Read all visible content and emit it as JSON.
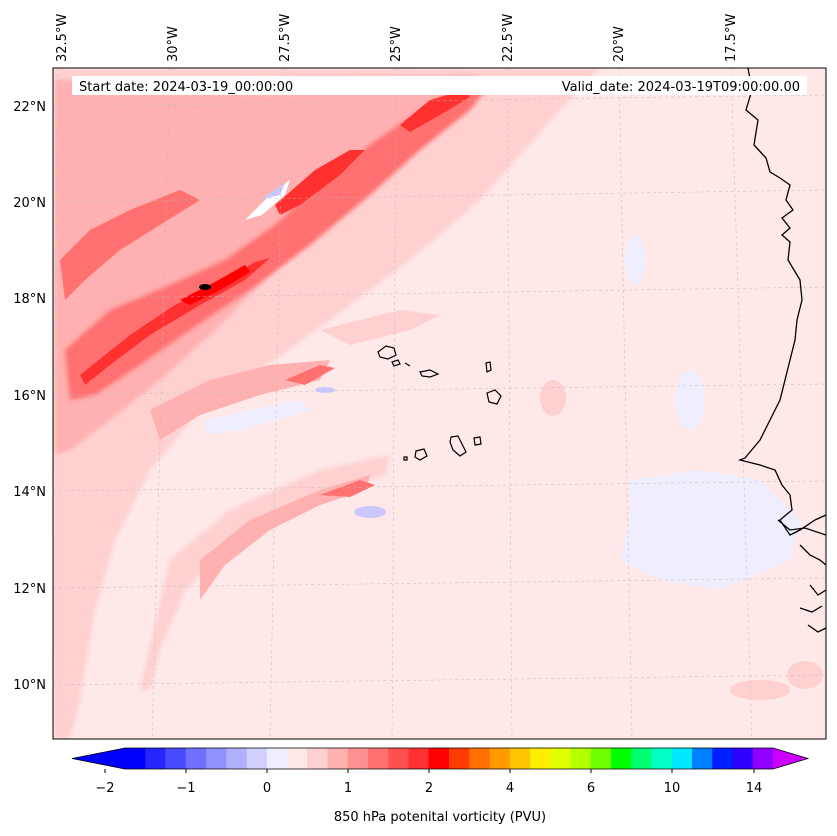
{
  "map": {
    "start_label": "Start date: 2024-03-19_00:00:00",
    "valid_label": "Valid_date: 2024-03-19T09:00:00.00",
    "lon_ticks": [
      "32.5°W",
      "30°W",
      "27.5°W",
      "25°W",
      "22.5°W",
      "20°W",
      "17.5°W"
    ],
    "lat_ticks": [
      "22°N",
      "20°N",
      "18°N",
      "16°N",
      "14°N",
      "12°N",
      "10°N"
    ],
    "background_color": "#ffe8e8"
  },
  "colorbar": {
    "label": "850 hPa potenital vorticity (PVU)",
    "tick_labels": [
      "−2",
      "−1",
      "0",
      "1",
      "2",
      "4",
      "6",
      "10",
      "14"
    ],
    "colors": [
      "#0000ff",
      "#2525ff",
      "#4a4aff",
      "#7070ff",
      "#9090ff",
      "#b0b0ff",
      "#d0d0ff",
      "#eeeeff",
      "#ffe8e8",
      "#ffd0d0",
      "#ffb0b0",
      "#ff9090",
      "#ff7070",
      "#ff5050",
      "#ff3030",
      "#ff0000",
      "#ff3c00",
      "#ff7000",
      "#ff9a00",
      "#ffc400",
      "#ffee00",
      "#e0ff00",
      "#b4ff00",
      "#70ff00",
      "#00ff00",
      "#00ff70",
      "#00ffc0",
      "#00e8ff",
      "#0080ff",
      "#0020ff",
      "#3000ff",
      "#9000ff"
    ],
    "under_color": "#0000ff",
    "over_color": "#cc00ff"
  }
}
